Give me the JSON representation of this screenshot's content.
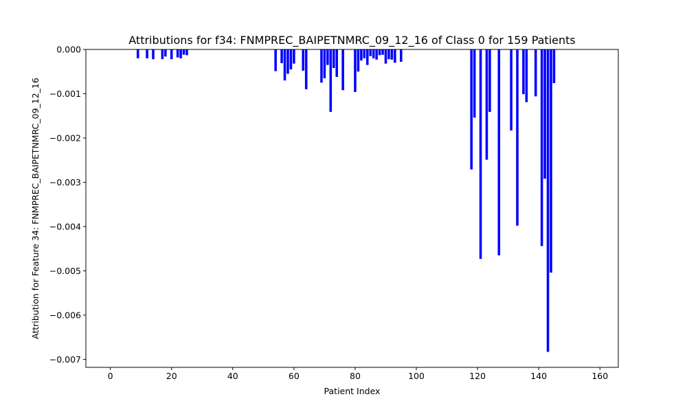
{
  "chart_data": {
    "type": "bar",
    "title": "Attributions for f34: FNMPREC_BAIPETNMRC_09_12_16 of Class 0 for 159 Patients",
    "xlabel": "Patient Index",
    "ylabel": "Attribution for Feature 34: FNMPREC_BAIPETNMRC_09_12_16",
    "xlim": [
      -8.0,
      166.0
    ],
    "ylim": [
      -0.00718,
      0.0
    ],
    "xticks": [
      0,
      20,
      40,
      60,
      80,
      100,
      120,
      140,
      160
    ],
    "xtick_labels": [
      "0",
      "20",
      "40",
      "60",
      "80",
      "100",
      "120",
      "140",
      "160"
    ],
    "yticks": [
      0.0,
      -0.001,
      -0.002,
      -0.003,
      -0.004,
      -0.005,
      -0.006,
      -0.007
    ],
    "ytick_labels": [
      "0.000",
      "−0.001",
      "−0.002",
      "−0.003",
      "−0.004",
      "−0.005",
      "−0.006",
      "−0.007"
    ],
    "bar_color": "#0000ff",
    "grid": false,
    "series": [
      {
        "x": [
          9,
          12,
          14,
          17,
          18,
          20,
          22,
          23,
          24,
          25,
          54,
          56,
          57,
          58,
          59,
          60,
          63,
          64,
          69,
          70,
          71,
          72,
          73,
          74,
          76,
          80,
          81,
          82,
          83,
          84,
          85,
          86,
          87,
          88,
          89,
          90,
          91,
          92,
          93,
          95,
          118,
          119,
          121,
          123,
          124,
          127,
          131,
          133,
          135,
          136,
          139,
          141,
          142,
          143,
          144,
          145
        ],
        "values": [
          -0.0002,
          -0.0002,
          -0.00022,
          -0.00022,
          -0.00016,
          -0.00022,
          -0.00018,
          -0.0002,
          -0.00012,
          -0.00013,
          -0.00049,
          -0.00031,
          -0.0007,
          -0.00055,
          -0.00045,
          -0.00032,
          -0.00048,
          -0.0009,
          -0.00075,
          -0.00065,
          -0.00035,
          -0.00141,
          -0.00042,
          -0.00062,
          -0.00092,
          -0.00096,
          -0.0005,
          -0.00025,
          -0.0002,
          -0.00035,
          -0.00015,
          -0.0002,
          -0.00023,
          -0.00013,
          -0.00012,
          -0.00032,
          -0.00022,
          -0.00023,
          -0.0003,
          -0.00028,
          -0.00271,
          -0.00154,
          -0.00473,
          -0.00249,
          -0.00141,
          -0.00465,
          -0.00183,
          -0.00398,
          -0.00101,
          -0.00119,
          -0.00106,
          -0.00444,
          -0.00292,
          -0.00683,
          -0.00504,
          -0.00076
        ]
      }
    ]
  }
}
